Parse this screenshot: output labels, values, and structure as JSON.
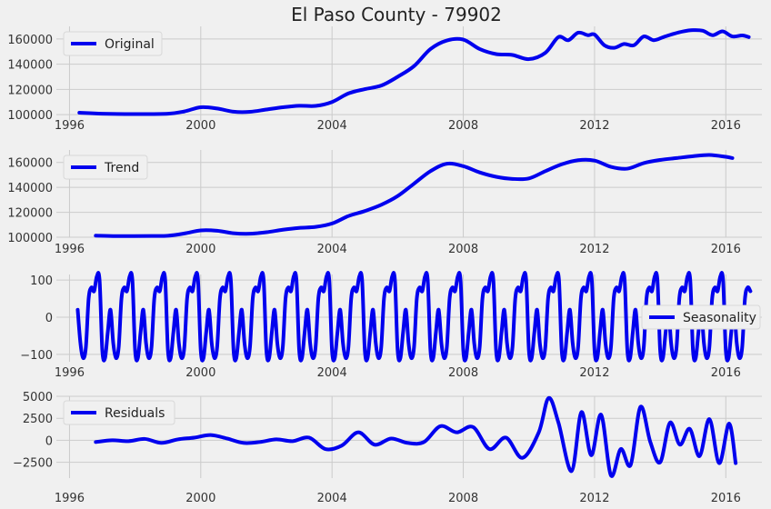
{
  "figure": {
    "title": "El Paso County - 79902",
    "background": "#f0f0f0",
    "grid_color": "#cbcbcb",
    "line_color": "#0000ee"
  },
  "chart_data": [
    {
      "type": "line",
      "legend": "Original",
      "legend_position": "upper-left",
      "xlim": [
        1995.6,
        2017.1
      ],
      "ylim": [
        95000,
        170000
      ],
      "xticks": [
        1996,
        2000,
        2004,
        2008,
        2012,
        2016
      ],
      "yticks": [
        100000,
        120000,
        140000,
        160000
      ],
      "ytick_labels": [
        "100000",
        "120000",
        "140000",
        "160000"
      ],
      "x": [
        1996.3,
        1997,
        1998,
        1999,
        1999.5,
        2000,
        2000.5,
        2001,
        2001.5,
        2002,
        2002.5,
        2003,
        2003.5,
        2004,
        2004.5,
        2005,
        2005.5,
        2006,
        2006.5,
        2007,
        2007.5,
        2008,
        2008.5,
        2009,
        2009.5,
        2010,
        2010.5,
        2010.9,
        2011.2,
        2011.5,
        2011.8,
        2012,
        2012.3,
        2012.6,
        2012.9,
        2013.2,
        2013.5,
        2013.8,
        2014.1,
        2014.4,
        2014.7,
        2015,
        2015.3,
        2015.6,
        2015.9,
        2016.2,
        2016.5,
        2016.7
      ],
      "y": [
        101500,
        100700,
        100400,
        100700,
        102500,
        105800,
        104800,
        102300,
        102200,
        104000,
        105800,
        107000,
        106900,
        110000,
        116800,
        120200,
        123000,
        130000,
        138500,
        152000,
        158800,
        159500,
        152000,
        148000,
        147300,
        144000,
        149000,
        161500,
        159000,
        165000,
        163000,
        163500,
        155000,
        153000,
        156000,
        155000,
        162000,
        159000,
        161500,
        164000,
        166000,
        167000,
        166500,
        163000,
        166000,
        162000,
        162800,
        161500
      ]
    },
    {
      "type": "line",
      "legend": "Trend",
      "legend_position": "upper-left",
      "xlim": [
        1995.6,
        2017.1
      ],
      "ylim": [
        100000,
        170000
      ],
      "xticks": [
        1996,
        2000,
        2004,
        2008,
        2012,
        2016
      ],
      "yticks": [
        100000,
        120000,
        140000,
        160000
      ],
      "ytick_labels": [
        "100000",
        "120000",
        "140000",
        "160000"
      ],
      "x": [
        1996.8,
        1997.5,
        1998.5,
        1999,
        1999.5,
        2000,
        2000.5,
        2001,
        2001.5,
        2002,
        2002.5,
        2003,
        2003.5,
        2004,
        2004.5,
        2005,
        2005.5,
        2006,
        2006.5,
        2007,
        2007.5,
        2008,
        2008.5,
        2009,
        2009.5,
        2010,
        2010.5,
        2011,
        2011.5,
        2012,
        2012.5,
        2013,
        2013.5,
        2014,
        2014.5,
        2015,
        2015.5,
        2016,
        2016.2
      ],
      "y": [
        101300,
        100900,
        101000,
        101200,
        103000,
        105500,
        105200,
        103200,
        102800,
        104000,
        106000,
        107500,
        108300,
        111000,
        117000,
        121000,
        126000,
        133000,
        143000,
        153000,
        159000,
        157000,
        152000,
        148500,
        146800,
        147200,
        153000,
        158500,
        161800,
        161500,
        156500,
        155000,
        159500,
        162000,
        163500,
        165000,
        166000,
        164500,
        163500
      ]
    },
    {
      "type": "line",
      "legend": "Seasonality",
      "legend_position": "center-right",
      "xlim": [
        1995.6,
        2017.1
      ],
      "ylim": [
        -120,
        115
      ],
      "xticks": [
        1996,
        2000,
        2004,
        2008,
        2012,
        2016
      ],
      "yticks": [
        -100,
        0,
        100
      ],
      "ytick_labels": [
        "−100",
        "0",
        "100"
      ],
      "x_start": 1996.25,
      "x_end": 2016.75,
      "period_years": 1,
      "pattern": [
        20,
        -70,
        -110,
        -80,
        50,
        80,
        70,
        110,
        100,
        -90,
        -110,
        -40
      ]
    },
    {
      "type": "line",
      "legend": "Residuals",
      "legend_position": "upper-left",
      "xlim": [
        1995.6,
        2017.1
      ],
      "ylim": [
        -4300,
        5000
      ],
      "xticks": [
        1996,
        2000,
        2004,
        2008,
        2012,
        2016
      ],
      "yticks": [
        -2500,
        0,
        2500,
        5000
      ],
      "ytick_labels": [
        "−2500",
        "0",
        "2500",
        "5000"
      ],
      "x": [
        1996.8,
        1997.3,
        1997.8,
        1998.3,
        1998.8,
        1999.3,
        1999.8,
        2000.3,
        2000.8,
        2001.3,
        2001.8,
        2002.3,
        2002.8,
        2003.3,
        2003.8,
        2004.3,
        2004.8,
        2005.3,
        2005.8,
        2006.3,
        2006.8,
        2007.3,
        2007.8,
        2008.3,
        2008.8,
        2009.3,
        2009.8,
        2010.3,
        2010.6,
        2010.9,
        2011.3,
        2011.6,
        2011.9,
        2012.2,
        2012.5,
        2012.8,
        2013.1,
        2013.4,
        2013.7,
        2014.0,
        2014.3,
        2014.6,
        2014.9,
        2015.2,
        2015.5,
        2015.8,
        2016.1,
        2016.3
      ],
      "y": [
        -200,
        0,
        -100,
        150,
        -300,
        100,
        300,
        600,
        200,
        -300,
        -200,
        100,
        -100,
        300,
        -1000,
        -600,
        900,
        -500,
        200,
        -300,
        -200,
        1600,
        900,
        1500,
        -1000,
        300,
        -2000,
        900,
        4800,
        2000,
        -3500,
        3200,
        -1700,
        2900,
        -4000,
        -1000,
        -2800,
        3800,
        -200,
        -2500,
        2000,
        -500,
        1300,
        -1800,
        2400,
        -2600,
        1900,
        -2600
      ]
    }
  ]
}
